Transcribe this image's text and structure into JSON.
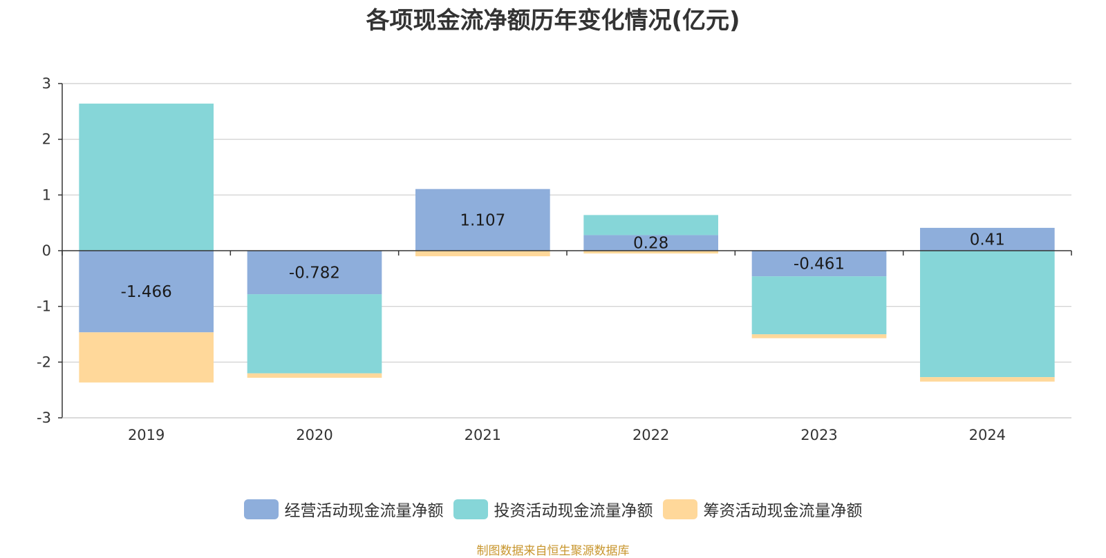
{
  "chart_data": {
    "type": "bar",
    "stacked": true,
    "title": "各项现金流净额历年变化情况(亿元)",
    "categories": [
      "2019",
      "2020",
      "2021",
      "2022",
      "2023",
      "2024"
    ],
    "series": [
      {
        "name": "经营活动现金流量净额",
        "color": "#8eaedb",
        "values": [
          -1.466,
          -0.782,
          1.107,
          0.28,
          -0.461,
          0.41
        ],
        "labels": [
          "-1.466",
          "-0.782",
          "1.107",
          "0.28",
          "-0.461",
          "0.41"
        ]
      },
      {
        "name": "投资活动现金流量净额",
        "color": "#86d6d8",
        "values": [
          2.64,
          -1.42,
          0.0,
          0.36,
          -1.04,
          -2.27
        ]
      },
      {
        "name": "筹资活动现金流量净额",
        "color": "#ffd89a",
        "values": [
          -0.9,
          -0.08,
          -0.1,
          -0.05,
          -0.07,
          -0.08
        ]
      }
    ],
    "ylim": [
      -3,
      3
    ],
    "yticks": [
      "3",
      "2",
      "1",
      "0",
      "-1",
      "-2",
      "-3"
    ],
    "xlabel": "",
    "ylabel": "",
    "grid": true,
    "legend_position": "bottom"
  },
  "source_text": "制图数据来自恒生聚源数据库"
}
